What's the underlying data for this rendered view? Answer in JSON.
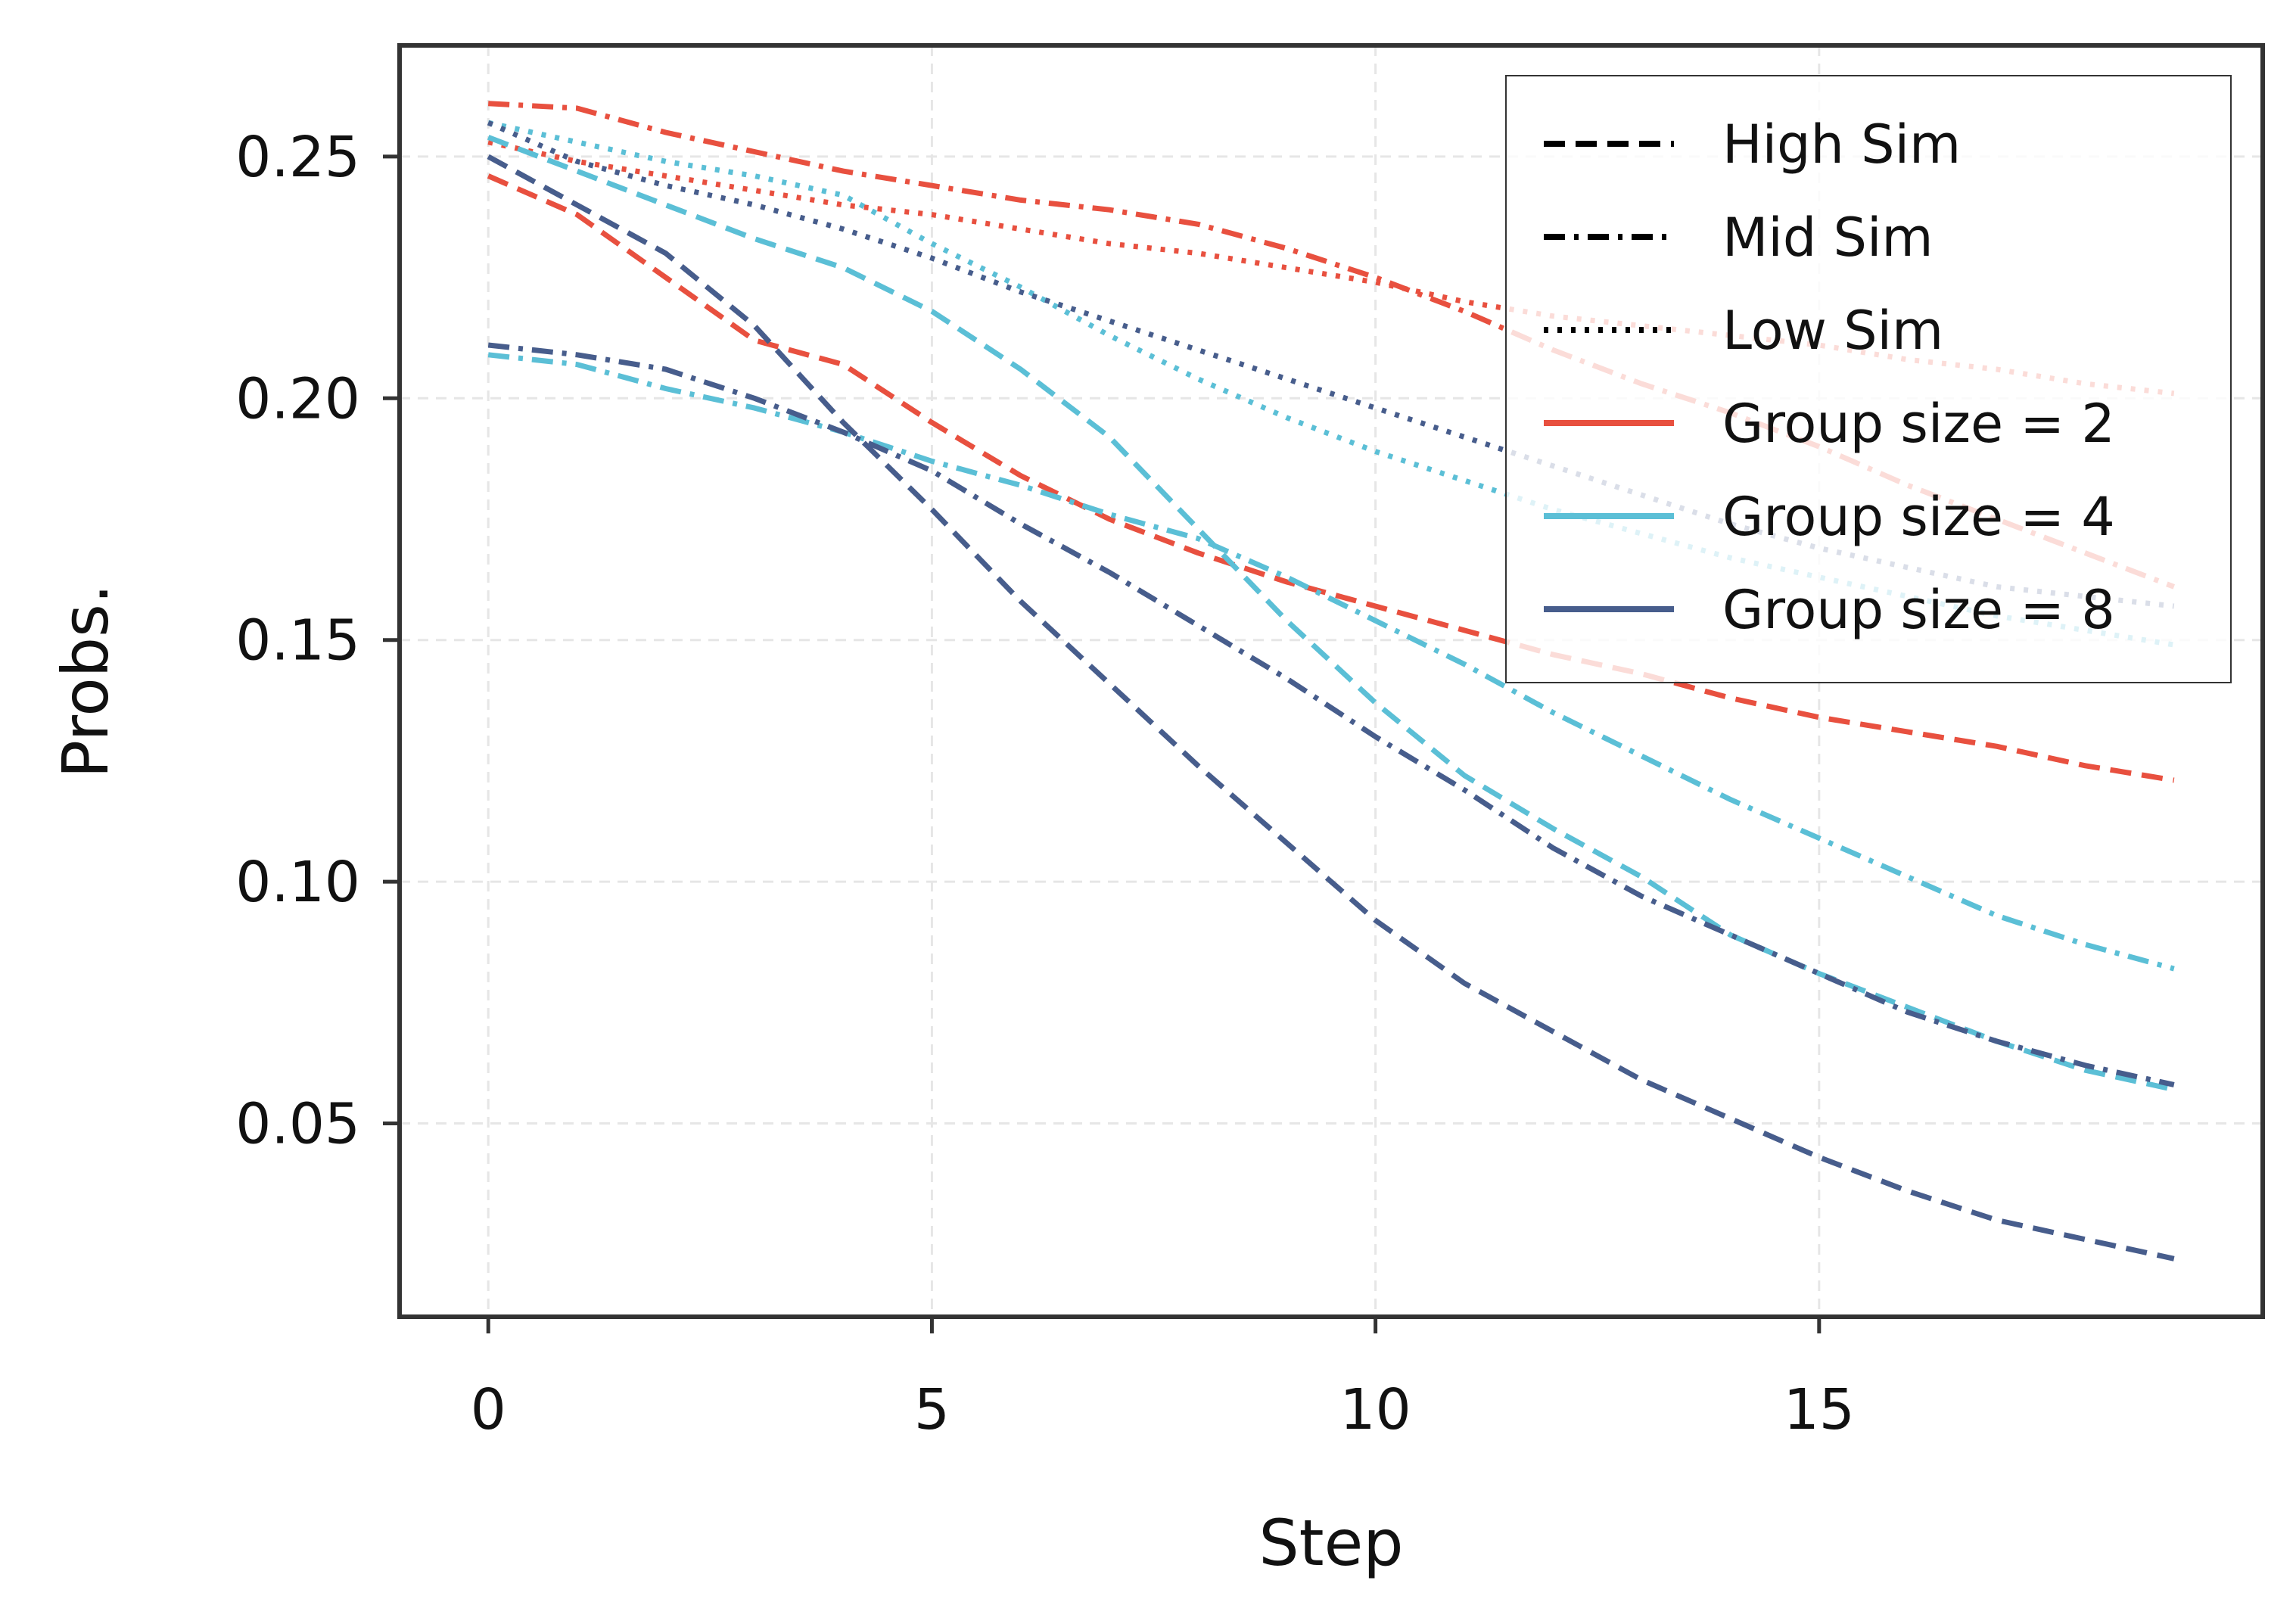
{
  "chart_data": {
    "type": "line",
    "title": "",
    "xlabel": "Step",
    "ylabel": "Probs.",
    "xlim": [
      -1,
      20
    ],
    "ylim": [
      0.01,
      0.273
    ],
    "xticks": [
      0,
      5,
      10,
      15
    ],
    "xtick_labels": [
      "0",
      "5",
      "10",
      "15"
    ],
    "yticks": [
      0.05,
      0.1,
      0.15,
      0.2,
      0.25
    ],
    "ytick_labels": [
      "0.05",
      "0.10",
      "0.15",
      "0.20",
      "0.25"
    ],
    "grid": true,
    "legend_position": "top-right",
    "legend": [
      {
        "label": "High Sim",
        "kind": "style",
        "dash": "dashed"
      },
      {
        "label": "Mid Sim",
        "kind": "style",
        "dash": "dashdot"
      },
      {
        "label": "Low Sim",
        "kind": "style",
        "dash": "dotted"
      },
      {
        "label": "Group size = 2",
        "kind": "color",
        "color": "#E8503F"
      },
      {
        "label": "Group size = 4",
        "kind": "color",
        "color": "#5BBFD6"
      },
      {
        "label": "Group size = 8",
        "kind": "color",
        "color": "#475D8C"
      }
    ],
    "x": [
      0,
      1,
      2,
      3,
      4,
      5,
      6,
      7,
      8,
      9,
      10,
      11,
      12,
      13,
      14,
      15,
      16,
      17,
      18,
      19
    ],
    "series": [
      {
        "name": "Group size = 2, High Sim",
        "group": 2,
        "sim": "High Sim",
        "color": "#E8503F",
        "dash": "dashed",
        "values": [
          0.246,
          0.238,
          0.225,
          0.212,
          0.207,
          0.195,
          0.184,
          0.175,
          0.168,
          0.162,
          0.157,
          0.152,
          0.147,
          0.143,
          0.138,
          0.134,
          0.131,
          0.128,
          0.124,
          0.121
        ]
      },
      {
        "name": "Group size = 2, Mid Sim",
        "group": 2,
        "sim": "Mid Sim",
        "color": "#E8503F",
        "dash": "dashdot",
        "values": [
          0.261,
          0.26,
          0.255,
          0.251,
          0.247,
          0.244,
          0.241,
          0.239,
          0.236,
          0.231,
          0.225,
          0.218,
          0.21,
          0.203,
          0.197,
          0.19,
          0.182,
          0.175,
          0.168,
          0.161
        ]
      },
      {
        "name": "Group size = 2, Low Sim",
        "group": 2,
        "sim": "Low Sim",
        "color": "#E8503F",
        "dash": "dotted",
        "values": [
          0.253,
          0.249,
          0.246,
          0.243,
          0.24,
          0.238,
          0.235,
          0.232,
          0.23,
          0.227,
          0.224,
          0.22,
          0.217,
          0.215,
          0.213,
          0.211,
          0.208,
          0.206,
          0.203,
          0.201
        ]
      },
      {
        "name": "Group size = 4, High Sim",
        "group": 4,
        "sim": "High Sim",
        "color": "#5BBFD6",
        "dash": "dashed",
        "values": [
          0.254,
          0.247,
          0.24,
          0.233,
          0.227,
          0.218,
          0.206,
          0.192,
          0.173,
          0.154,
          0.137,
          0.122,
          0.111,
          0.101,
          0.089,
          0.081,
          0.074,
          0.067,
          0.061,
          0.057
        ]
      },
      {
        "name": "Group size = 4, Mid Sim",
        "group": 4,
        "sim": "Mid Sim",
        "color": "#5BBFD6",
        "dash": "dashdot",
        "values": [
          0.209,
          0.207,
          0.202,
          0.198,
          0.193,
          0.187,
          0.182,
          0.176,
          0.171,
          0.163,
          0.154,
          0.145,
          0.135,
          0.126,
          0.117,
          0.109,
          0.101,
          0.093,
          0.087,
          0.082
        ]
      },
      {
        "name": "Group size = 4, Low Sim",
        "group": 4,
        "sim": "Low Sim",
        "color": "#5BBFD6",
        "dash": "dotted",
        "values": [
          0.257,
          0.253,
          0.249,
          0.246,
          0.242,
          0.232,
          0.223,
          0.213,
          0.204,
          0.196,
          0.189,
          0.183,
          0.177,
          0.172,
          0.167,
          0.163,
          0.159,
          0.155,
          0.152,
          0.149
        ]
      },
      {
        "name": "Group size = 8, High Sim",
        "group": 8,
        "sim": "High Sim",
        "color": "#475D8C",
        "dash": "dashed",
        "values": [
          0.25,
          0.24,
          0.23,
          0.215,
          0.195,
          0.177,
          0.158,
          0.141,
          0.124,
          0.108,
          0.092,
          0.079,
          0.069,
          0.059,
          0.051,
          0.043,
          0.036,
          0.03,
          0.026,
          0.022
        ]
      },
      {
        "name": "Group size = 8, Mid Sim",
        "group": 8,
        "sim": "Mid Sim",
        "color": "#475D8C",
        "dash": "dashdot",
        "values": [
          0.211,
          0.209,
          0.206,
          0.2,
          0.193,
          0.185,
          0.174,
          0.164,
          0.153,
          0.142,
          0.13,
          0.119,
          0.107,
          0.097,
          0.089,
          0.081,
          0.073,
          0.067,
          0.062,
          0.058
        ]
      },
      {
        "name": "Group size = 8, Low Sim",
        "group": 8,
        "sim": "Low Sim",
        "color": "#475D8C",
        "dash": "dotted",
        "values": [
          0.257,
          0.249,
          0.244,
          0.24,
          0.235,
          0.229,
          0.222,
          0.216,
          0.21,
          0.204,
          0.198,
          0.192,
          0.186,
          0.18,
          0.174,
          0.169,
          0.165,
          0.161,
          0.159,
          0.157
        ]
      }
    ]
  }
}
